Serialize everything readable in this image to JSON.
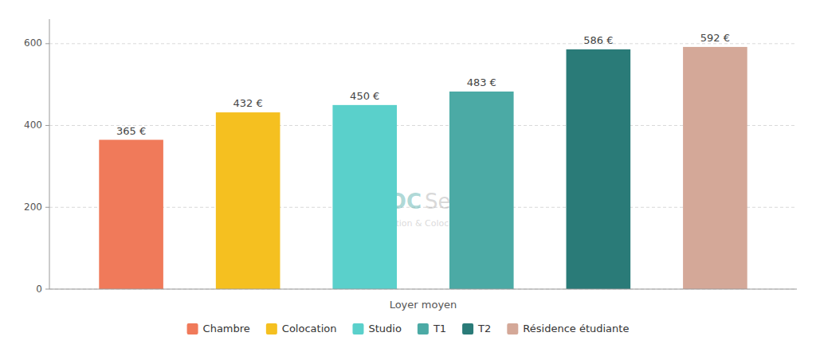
{
  "chart_data": {
    "type": "bar",
    "categories": [
      "Chambre",
      "Colocation",
      "Studio",
      "T1",
      "T2",
      "Résidence étudiante"
    ],
    "values": [
      365,
      432,
      450,
      483,
      586,
      592
    ],
    "value_labels": [
      "365 €",
      "432 €",
      "450 €",
      "483 €",
      "586 €",
      "592 €"
    ],
    "colors": [
      "#F07A5A",
      "#F5C020",
      "#5AD0CB",
      "#4BAAA5",
      "#2A7B78",
      "#D4A898"
    ],
    "xlabel": "Loyer moyen",
    "ylim": [
      0,
      660
    ],
    "yticks": [
      0,
      200,
      400,
      600
    ],
    "grid": true,
    "legend": "bottom",
    "data_labels": true,
    "tick_labels": "y",
    "annotations": [
      {
        "text": "LOC",
        "color": "#4BAAA5"
      },
      {
        "text": "Service",
        "color": "#AAAAAA"
      },
      {
        "text": "Location & Colocation",
        "color": "#BBBBBB"
      }
    ]
  }
}
